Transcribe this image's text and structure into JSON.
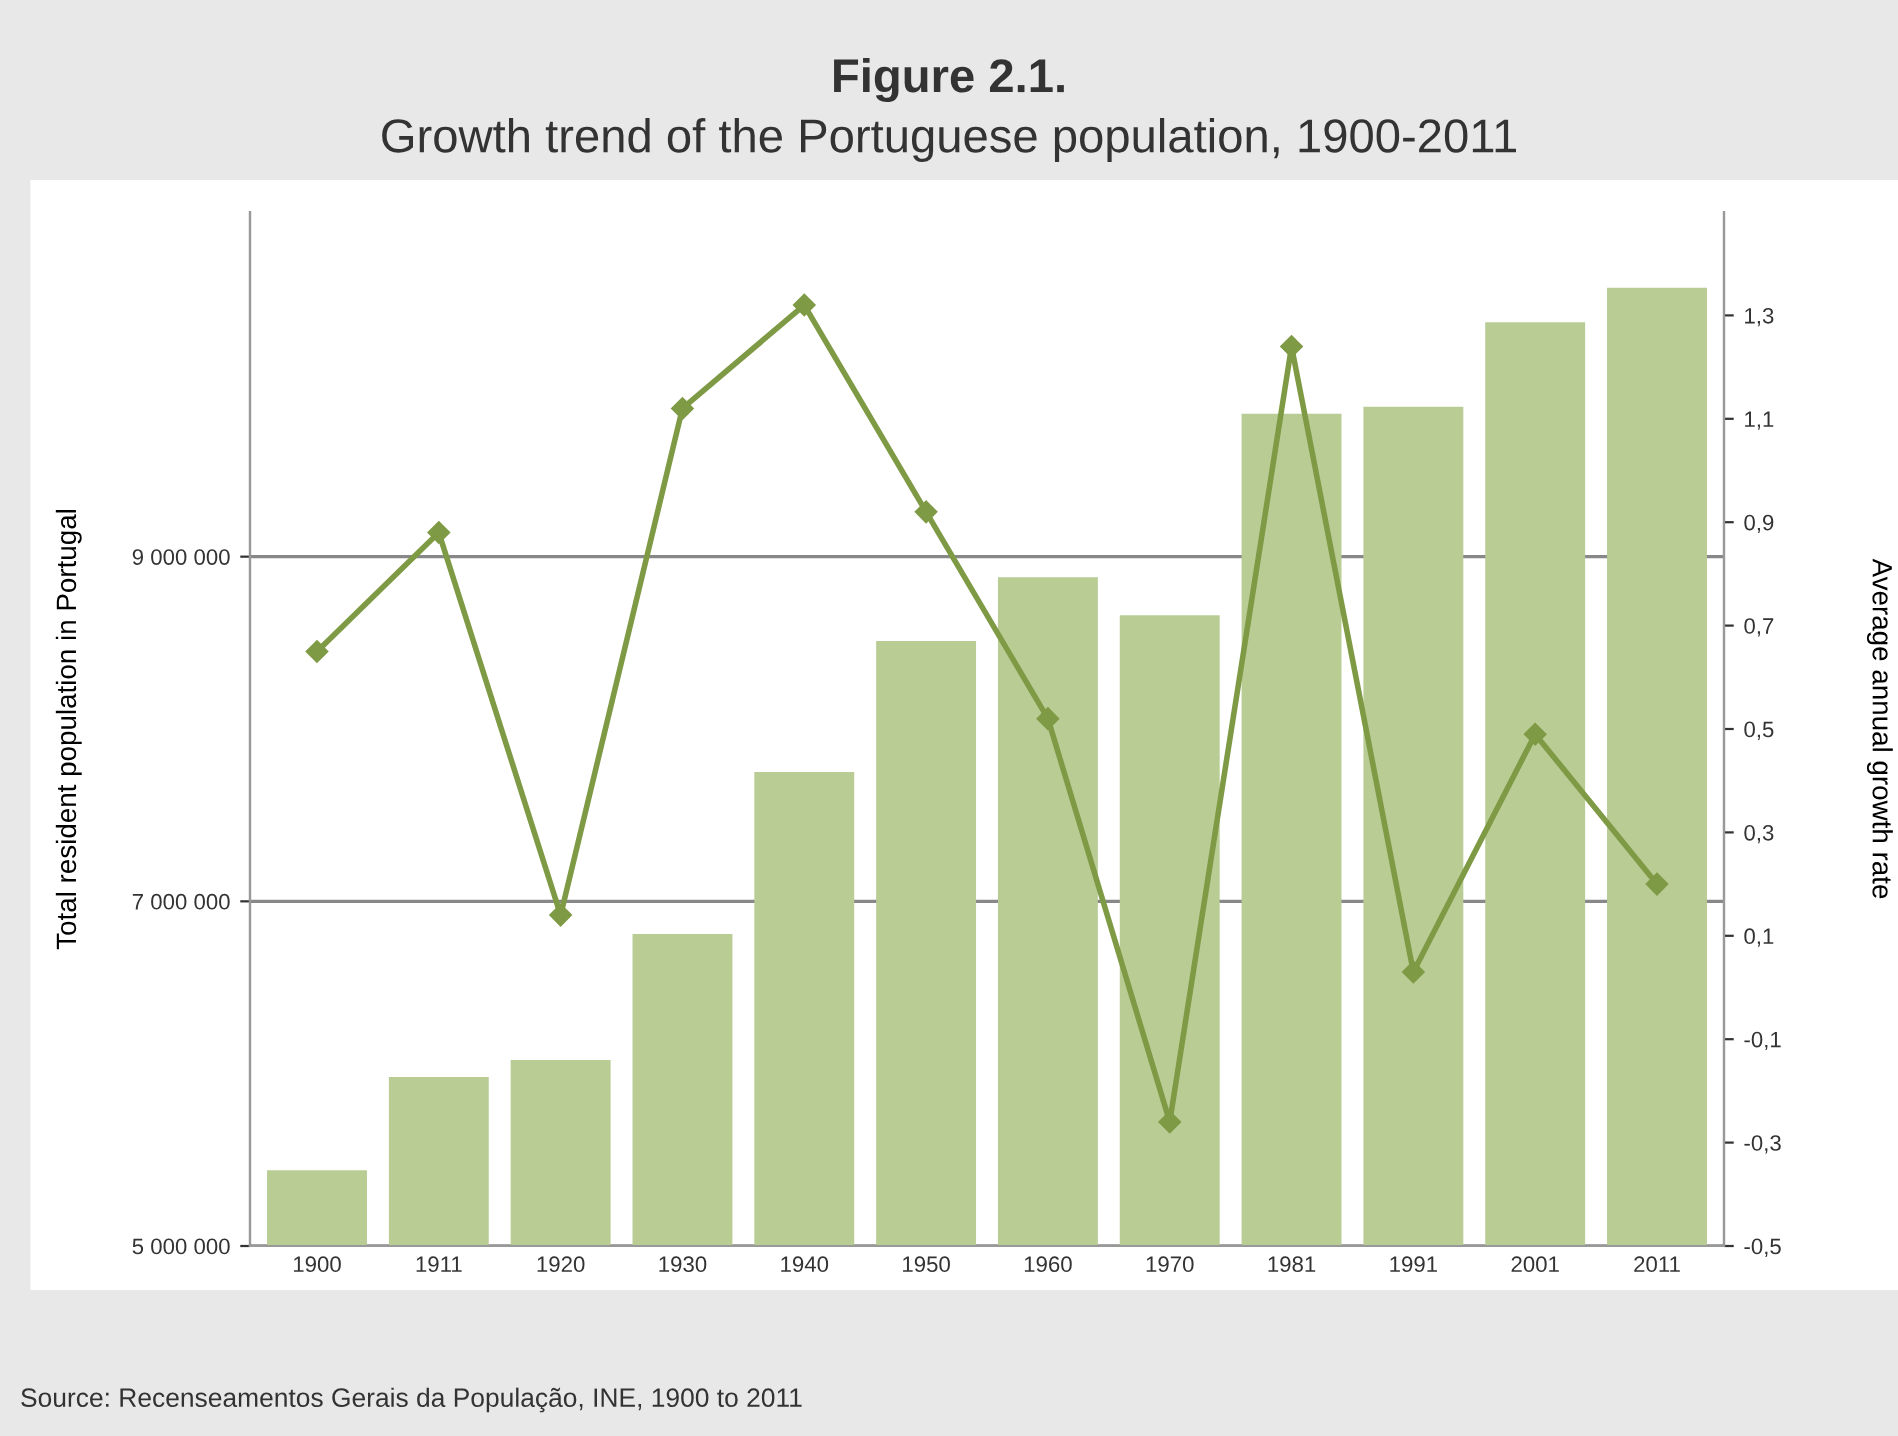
{
  "chart_data": {
    "type": "bar",
    "title": "Figure 2.1.",
    "subtitle": "Growth trend of the Portuguese population, 1900-2011",
    "ylabel": "Total resident population in Portugal",
    "y2label": "Average annual growth rate",
    "categories": [
      "1900",
      "1911",
      "1920",
      "1930",
      "1940",
      "1950",
      "1960",
      "1970",
      "1981",
      "1991",
      "2001",
      "2011"
    ],
    "series": [
      {
        "color": "#b8cc94",
        "values": [
          5440000,
          5980000,
          6080000,
          6810000,
          7750000,
          8510000,
          8880000,
          8660000,
          9830000,
          9870000,
          10360000,
          10560000
        ]
      },
      {
        "type": "line",
        "axis": "y2",
        "color": "#7f9a45",
        "marker": "diamond",
        "line_style": "solid",
        "values": [
          0.65,
          0.88,
          0.14,
          1.12,
          1.32,
          0.92,
          0.52,
          -0.26,
          1.24,
          0.03,
          0.49,
          0.2
        ]
      }
    ],
    "ylim": [
      5000000,
      11000000
    ],
    "yticks": [
      {
        "value": 5000000,
        "label": "5 000 000"
      },
      {
        "value": 7000000,
        "label": "7 000 000"
      },
      {
        "value": 9000000,
        "label": "9 000 000"
      }
    ],
    "y2lim": [
      -0.5,
      1.5
    ],
    "y2ticks": [
      {
        "value": -0.5,
        "label": "-0,5"
      },
      {
        "value": -0.3,
        "label": "-0,3"
      },
      {
        "value": -0.1,
        "label": "-0,1"
      },
      {
        "value": 0.1,
        "label": "0,1"
      },
      {
        "value": 0.3,
        "label": "0,3"
      },
      {
        "value": 0.5,
        "label": "0,5"
      },
      {
        "value": 0.7,
        "label": "0,7"
      },
      {
        "value": 0.9,
        "label": "0,9"
      },
      {
        "value": 1.1,
        "label": "1,1"
      },
      {
        "value": 1.3,
        "label": "1,3"
      }
    ],
    "grid": "y",
    "annotations": [
      "Source: Recenseamentos Gerais da População, INE, 1900 to 2011"
    ]
  }
}
